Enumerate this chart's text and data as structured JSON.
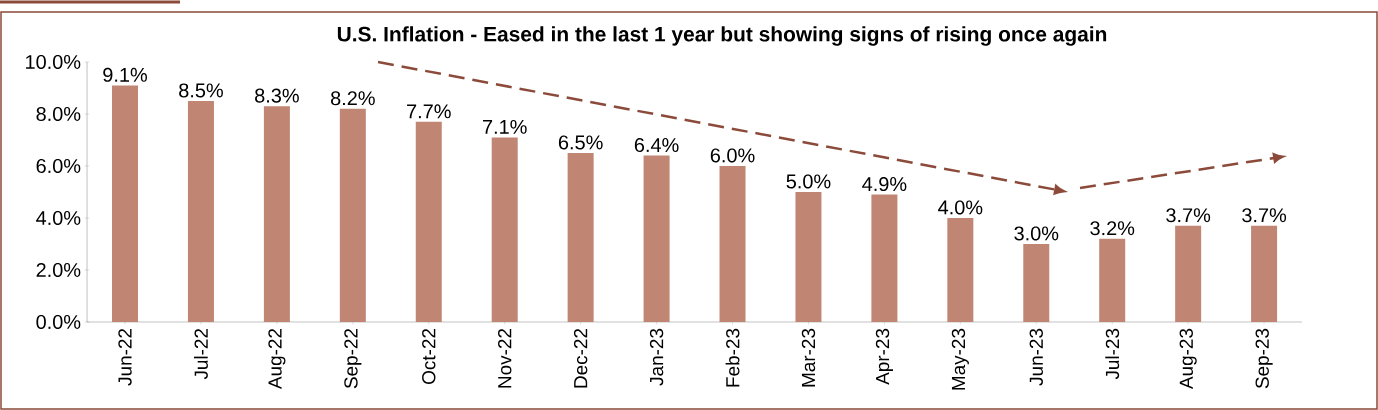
{
  "chart_data": {
    "type": "bar",
    "title": "U.S. Inflation - Eased in the last 1 year but showing signs of rising once again",
    "categories": [
      "Jun-22",
      "Jul-22",
      "Aug-22",
      "Sep-22",
      "Oct-22",
      "Nov-22",
      "Dec-22",
      "Jan-23",
      "Feb-23",
      "Mar-23",
      "Apr-23",
      "May-23",
      "Jun-23",
      "Jul-23",
      "Aug-23",
      "Sep-23"
    ],
    "values": [
      9.1,
      8.5,
      8.3,
      8.2,
      7.7,
      7.1,
      6.5,
      6.4,
      6.0,
      5.0,
      4.9,
      4.0,
      3.0,
      3.2,
      3.7,
      3.7
    ],
    "value_labels": [
      "9.1%",
      "8.5%",
      "8.3%",
      "8.2%",
      "7.7%",
      "7.1%",
      "6.5%",
      "6.4%",
      "6.0%",
      "5.0%",
      "4.9%",
      "4.0%",
      "3.0%",
      "3.2%",
      "3.7%",
      "3.7%"
    ],
    "color": "#c08573",
    "ylim": [
      0,
      10
    ],
    "yticks": [
      {
        "value": 0,
        "label": "0.0%"
      },
      {
        "value": 2,
        "label": "2.0%"
      },
      {
        "value": 4,
        "label": "4.0%"
      },
      {
        "value": 6,
        "label": "6.0%"
      },
      {
        "value": 8,
        "label": "8.0%"
      },
      {
        "value": 10,
        "label": "10.0%"
      }
    ],
    "grid": false
  }
}
